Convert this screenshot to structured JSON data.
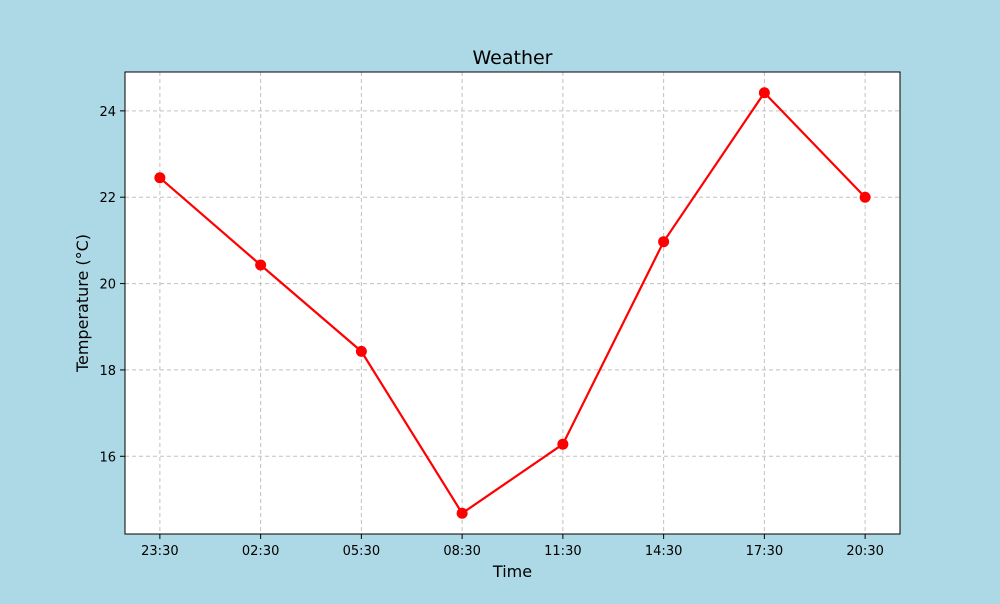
{
  "colors": {
    "background": "#add8e6",
    "plot_background": "#ffffff",
    "line": "#ff0000",
    "grid": "#c0c0c0",
    "axes": "#000000"
  },
  "chart_data": {
    "type": "line",
    "title": "Weather",
    "xlabel": "Time",
    "ylabel": "Temperature (°C)",
    "categories": [
      "23:30",
      "02:30",
      "05:30",
      "08:30",
      "11:30",
      "14:30",
      "17:30",
      "20:30"
    ],
    "series": [
      {
        "values": [
          22.45,
          20.43,
          18.43,
          14.68,
          16.28,
          20.97,
          24.42,
          22.0
        ],
        "color": "#ff0000",
        "marker": "circle"
      }
    ],
    "ylim": [
      14.2,
      24.9
    ],
    "yticks": [
      16,
      18,
      20,
      22,
      24
    ],
    "grid": true,
    "grid_style": "dashed"
  }
}
